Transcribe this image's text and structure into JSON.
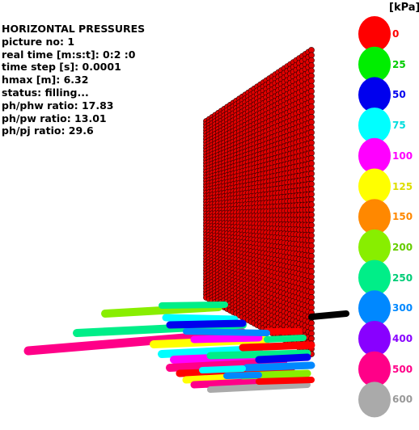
{
  "info": {
    "title": "HORIZONTAL PRESSURES",
    "picture_no": "picture no: 1",
    "real_time": "real time [m:s:t]: 0:2 :0",
    "time_step": "time step [s]: 0.0001",
    "hmax": "hmax [m]: 6.32",
    "status": "status: filling...",
    "ph_phw": "ph/phw ratio: 17.83",
    "ph_pw": "ph/pw ratio: 13.01",
    "ph_pj": "ph/pj ratio: 29.6"
  },
  "legend": {
    "unit": "[kPa]",
    "entries": [
      {
        "label": "0",
        "color": "#ff0000",
        "text_color": "#ff0000"
      },
      {
        "label": "25",
        "color": "#00ee00",
        "text_color": "#00cc00"
      },
      {
        "label": "50",
        "color": "#0000ee",
        "text_color": "#0000ee"
      },
      {
        "label": "75",
        "color": "#00ffff",
        "text_color": "#00dddd"
      },
      {
        "label": "100",
        "color": "#ff00ff",
        "text_color": "#ff00ff"
      },
      {
        "label": "125",
        "color": "#ffff00",
        "text_color": "#dddd00"
      },
      {
        "label": "150",
        "color": "#ff8800",
        "text_color": "#ff8800"
      },
      {
        "label": "200",
        "color": "#88ee00",
        "text_color": "#66cc00"
      },
      {
        "label": "250",
        "color": "#00ee88",
        "text_color": "#00cc77"
      },
      {
        "label": "300",
        "color": "#0088ff",
        "text_color": "#0088ff"
      },
      {
        "label": "400",
        "color": "#8800ff",
        "text_color": "#8800ff"
      },
      {
        "label": "500",
        "color": "#ff0088",
        "text_color": "#ff0088"
      },
      {
        "label": "600",
        "color": "#aaaaaa",
        "text_color": "#999999"
      }
    ]
  },
  "scene_colors": {
    "wall": "#e00000",
    "wall_outline": "#300000",
    "rod": "#000000"
  }
}
